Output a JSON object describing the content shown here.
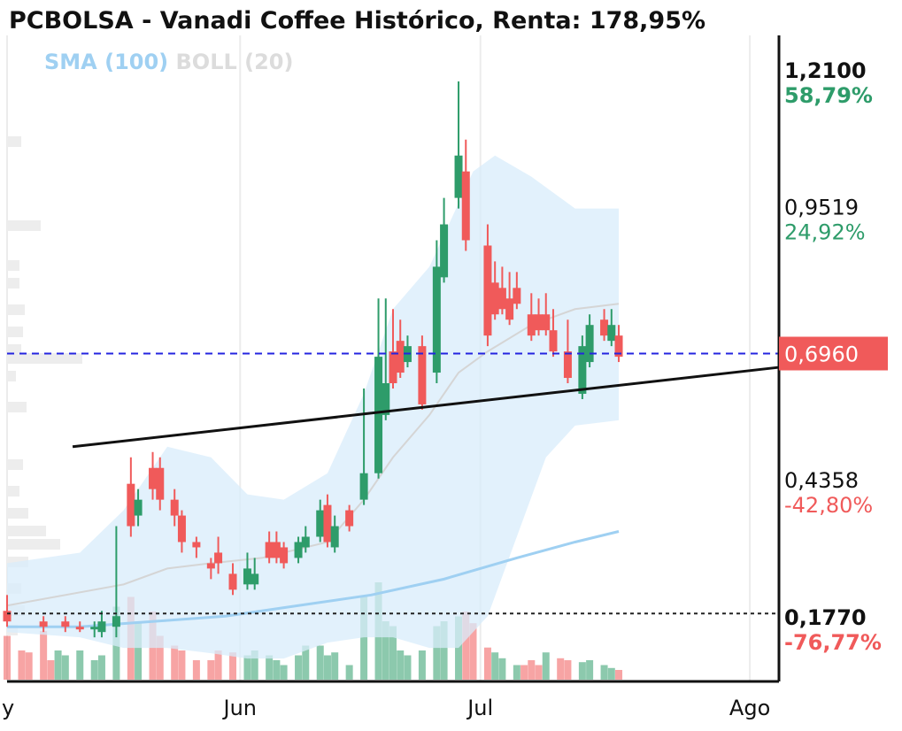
{
  "chart_data": {
    "type": "candlestick",
    "title": "PCBOLSA - Vanadi Coffee Histórico, Renta: 178,95%",
    "indicators": [
      {
        "name": "SMA (100)",
        "color": "#9fd0f2"
      },
      {
        "name": "BOLL (20)",
        "color": "#dcdcdc"
      }
    ],
    "y_labels": [
      {
        "value": "1,2100",
        "pct": "58,79%",
        "v": 1.21,
        "bold": true,
        "pct_color": "#2e9c6a"
      },
      {
        "value": "0,9519",
        "pct": "24,92%",
        "v": 0.9519,
        "bold": false,
        "pct_color": "#2e9c6a"
      },
      {
        "value": "0,4358",
        "pct": "-42,80%",
        "v": 0.4358,
        "bold": false,
        "pct_color": "#f05a5a"
      },
      {
        "value": "0,1770",
        "pct": "-76,77%",
        "v": 0.177,
        "bold": true,
        "pct_color": "#f05a5a"
      }
    ],
    "current_price": {
      "label": "0,6960",
      "v": 0.696
    },
    "x_labels": [
      {
        "label": "y",
        "x": 0
      },
      {
        "label": "Jun",
        "x": 32
      },
      {
        "label": "Jul",
        "x": 65
      },
      {
        "label": "Ago",
        "x": 102
      }
    ],
    "candles": [
      [
        0,
        0.21,
        0.24,
        0.19,
        0.18,
        "#f05a5a"
      ],
      [
        5,
        0.19,
        0.2,
        0.18,
        0.17,
        "#f05a5a"
      ],
      [
        8,
        0.19,
        0.2,
        0.18,
        0.17,
        "#f05a5a"
      ],
      [
        10,
        0.18,
        0.19,
        0.18,
        0.17,
        "#f05a5a"
      ],
      [
        12,
        0.18,
        0.19,
        0.18,
        0.16,
        "#2e9c6a"
      ],
      [
        13,
        0.19,
        0.21,
        0.17,
        0.16,
        "#2e9c6a"
      ],
      [
        15,
        0.2,
        0.37,
        0.18,
        0.16,
        "#2e9c6a"
      ],
      [
        17,
        0.45,
        0.5,
        0.37,
        0.35,
        "#f05a5a"
      ],
      [
        18,
        0.42,
        0.44,
        0.39,
        0.37,
        "#2e9c6a"
      ],
      [
        20,
        0.48,
        0.51,
        0.44,
        0.42,
        "#f05a5a"
      ],
      [
        21,
        0.48,
        0.5,
        0.42,
        0.4,
        "#f05a5a"
      ],
      [
        23,
        0.42,
        0.44,
        0.39,
        0.37,
        "#f05a5a"
      ],
      [
        24,
        0.39,
        0.4,
        0.34,
        0.32,
        "#f05a5a"
      ],
      [
        26,
        0.34,
        0.35,
        0.33,
        0.31,
        "#f05a5a"
      ],
      [
        28,
        0.3,
        0.31,
        0.29,
        0.27,
        "#f05a5a"
      ],
      [
        29,
        0.32,
        0.35,
        0.3,
        0.28,
        "#f05a5a"
      ],
      [
        31,
        0.28,
        0.3,
        0.25,
        0.24,
        "#f05a5a"
      ],
      [
        33,
        0.29,
        0.32,
        0.26,
        0.25,
        "#2e9c6a"
      ],
      [
        34,
        0.28,
        0.31,
        0.26,
        0.25,
        "#2e9c6a"
      ],
      [
        36,
        0.34,
        0.36,
        0.31,
        0.3,
        "#f05a5a"
      ],
      [
        37,
        0.34,
        0.36,
        0.31,
        0.3,
        "#f05a5a"
      ],
      [
        38,
        0.33,
        0.34,
        0.3,
        0.29,
        "#f05a5a"
      ],
      [
        40,
        0.34,
        0.35,
        0.31,
        0.3,
        "#2e9c6a"
      ],
      [
        41,
        0.35,
        0.37,
        0.33,
        0.32,
        "#2e9c6a"
      ],
      [
        43,
        0.4,
        0.42,
        0.35,
        0.34,
        "#2e9c6a"
      ],
      [
        44,
        0.41,
        0.43,
        0.34,
        0.33,
        "#f05a5a"
      ],
      [
        45,
        0.37,
        0.39,
        0.33,
        0.32,
        "#2e9c6a"
      ],
      [
        47,
        0.4,
        0.41,
        0.37,
        0.36,
        "#f05a5a"
      ],
      [
        49,
        0.47,
        0.63,
        0.42,
        0.41,
        "#2e9c6a"
      ],
      [
        51,
        0.69,
        0.8,
        0.47,
        0.46,
        "#2e9c6a"
      ],
      [
        52,
        0.64,
        0.8,
        0.58,
        0.57,
        "#2e9c6a"
      ],
      [
        53,
        0.7,
        0.78,
        0.64,
        0.63,
        "#f05a5a"
      ],
      [
        54,
        0.72,
        0.76,
        0.66,
        0.65,
        "#f05a5a"
      ],
      [
        55,
        0.71,
        0.73,
        0.68,
        0.67,
        "#2e9c6a"
      ],
      [
        57,
        0.71,
        0.73,
        0.6,
        0.59,
        "#f05a5a"
      ],
      [
        59,
        0.86,
        0.91,
        0.66,
        0.64,
        "#2e9c6a"
      ],
      [
        60,
        0.94,
        0.99,
        0.84,
        0.83,
        "#2e9c6a"
      ],
      [
        62,
        1.07,
        1.21,
        0.99,
        0.97,
        "#2e9c6a"
      ],
      [
        63,
        1.04,
        1.1,
        0.91,
        0.89,
        "#f05a5a"
      ],
      [
        66,
        0.9,
        0.94,
        0.73,
        0.71,
        "#f05a5a"
      ],
      [
        67,
        0.83,
        0.87,
        0.77,
        0.76,
        "#f05a5a"
      ],
      [
        68,
        0.82,
        0.86,
        0.78,
        0.77,
        "#f05a5a"
      ],
      [
        69,
        0.8,
        0.85,
        0.76,
        0.75,
        "#f05a5a"
      ],
      [
        70,
        0.82,
        0.85,
        0.79,
        0.78,
        "#f05a5a"
      ],
      [
        72,
        0.77,
        0.81,
        0.73,
        0.72,
        "#f05a5a"
      ],
      [
        73,
        0.77,
        0.8,
        0.74,
        0.73,
        "#f05a5a"
      ],
      [
        74,
        0.77,
        0.81,
        0.74,
        0.73,
        "#f05a5a"
      ],
      [
        75,
        0.74,
        0.78,
        0.7,
        0.69,
        "#f05a5a"
      ],
      [
        77,
        0.7,
        0.76,
        0.65,
        0.64,
        "#f05a5a"
      ],
      [
        79,
        0.71,
        0.73,
        0.62,
        0.61,
        "#2e9c6a"
      ],
      [
        80,
        0.75,
        0.77,
        0.68,
        0.67,
        "#2e9c6a"
      ],
      [
        82,
        0.76,
        0.78,
        0.73,
        0.72,
        "#f05a5a"
      ],
      [
        83,
        0.75,
        0.78,
        0.72,
        0.71,
        "#2e9c6a"
      ],
      [
        84,
        0.73,
        0.75,
        0.69,
        0.68,
        "#f05a5a"
      ]
    ],
    "volume_note": "volume bars at bottom, proportional heights",
    "volumes": [
      [
        0,
        0.45,
        "#f05a5a"
      ],
      [
        2,
        0.3,
        "#f05a5a"
      ],
      [
        3,
        0.28,
        "#f05a5a"
      ],
      [
        5,
        0.5,
        "#f05a5a"
      ],
      [
        6,
        0.2,
        "#f05a5a"
      ],
      [
        7,
        0.3,
        "#2e9c6a"
      ],
      [
        8,
        0.25,
        "#2e9c6a"
      ],
      [
        10,
        0.3,
        "#2e9c6a"
      ],
      [
        12,
        0.2,
        "#2e9c6a"
      ],
      [
        13,
        0.25,
        "#2e9c6a"
      ],
      [
        15,
        0.75,
        "#2e9c6a"
      ],
      [
        17,
        0.85,
        "#f05a5a"
      ],
      [
        18,
        0.6,
        "#2e9c6a"
      ],
      [
        20,
        0.7,
        "#f05a5a"
      ],
      [
        21,
        0.45,
        "#f05a5a"
      ],
      [
        23,
        0.35,
        "#f05a5a"
      ],
      [
        24,
        0.3,
        "#f05a5a"
      ],
      [
        26,
        0.2,
        "#f05a5a"
      ],
      [
        28,
        0.2,
        "#f05a5a"
      ],
      [
        29,
        0.3,
        "#f05a5a"
      ],
      [
        31,
        0.28,
        "#f05a5a"
      ],
      [
        33,
        0.25,
        "#2e9c6a"
      ],
      [
        34,
        0.3,
        "#2e9c6a"
      ],
      [
        36,
        0.25,
        "#2e9c6a"
      ],
      [
        37,
        0.2,
        "#2e9c6a"
      ],
      [
        38,
        0.15,
        "#2e9c6a"
      ],
      [
        40,
        0.25,
        "#2e9c6a"
      ],
      [
        41,
        0.35,
        "#2e9c6a"
      ],
      [
        43,
        0.35,
        "#2e9c6a"
      ],
      [
        44,
        0.25,
        "#2e9c6a"
      ],
      [
        45,
        0.28,
        "#2e9c6a"
      ],
      [
        47,
        0.15,
        "#2e9c6a"
      ],
      [
        49,
        0.85,
        "#2e9c6a"
      ],
      [
        51,
        1.0,
        "#2e9c6a"
      ],
      [
        52,
        0.6,
        "#2e9c6a"
      ],
      [
        53,
        0.55,
        "#2e9c6a"
      ],
      [
        54,
        0.3,
        "#2e9c6a"
      ],
      [
        55,
        0.25,
        "#2e9c6a"
      ],
      [
        57,
        0.3,
        "#2e9c6a"
      ],
      [
        59,
        0.55,
        "#2e9c6a"
      ],
      [
        60,
        0.6,
        "#2e9c6a"
      ],
      [
        62,
        0.65,
        "#2e9c6a"
      ],
      [
        63,
        0.7,
        "#f05a5a"
      ],
      [
        64,
        0.58,
        "#f05a5a"
      ],
      [
        66,
        0.33,
        "#f05a5a"
      ],
      [
        67,
        0.28,
        "#2e9c6a"
      ],
      [
        68,
        0.22,
        "#2e9c6a"
      ],
      [
        70,
        0.15,
        "#2e9c6a"
      ],
      [
        71,
        0.15,
        "#f05a5a"
      ],
      [
        72,
        0.2,
        "#f05a5a"
      ],
      [
        73,
        0.15,
        "#f05a5a"
      ],
      [
        74,
        0.28,
        "#2e9c6a"
      ],
      [
        76,
        0.22,
        "#f05a5a"
      ],
      [
        77,
        0.2,
        "#f05a5a"
      ],
      [
        79,
        0.18,
        "#2e9c6a"
      ],
      [
        80,
        0.2,
        "#2e9c6a"
      ],
      [
        82,
        0.15,
        "#2e9c6a"
      ],
      [
        83,
        0.12,
        "#2e9c6a"
      ],
      [
        84,
        0.1,
        "#f05a5a"
      ]
    ],
    "bollinger_band": {
      "upper": [
        [
          0,
          0.3
        ],
        [
          10,
          0.32
        ],
        [
          16,
          0.4
        ],
        [
          22,
          0.52
        ],
        [
          28,
          0.5
        ],
        [
          33,
          0.43
        ],
        [
          38,
          0.42
        ],
        [
          44,
          0.47
        ],
        [
          49,
          0.62
        ],
        [
          53,
          0.78
        ],
        [
          58,
          0.86
        ],
        [
          62,
          0.98
        ],
        [
          64,
          1.04
        ],
        [
          67,
          1.07
        ],
        [
          72,
          1.03
        ],
        [
          76,
          0.99
        ],
        [
          78,
          0.97
        ],
        [
          84,
          0.97
        ]
      ],
      "lower": [
        [
          0,
          0.17
        ],
        [
          10,
          0.16
        ],
        [
          16,
          0.14
        ],
        [
          22,
          0.14
        ],
        [
          28,
          0.13
        ],
        [
          33,
          0.12
        ],
        [
          38,
          0.12
        ],
        [
          44,
          0.15
        ],
        [
          49,
          0.16
        ],
        [
          53,
          0.16
        ],
        [
          58,
          0.14
        ],
        [
          62,
          0.14
        ],
        [
          66,
          0.2
        ],
        [
          70,
          0.35
        ],
        [
          74,
          0.5
        ],
        [
          78,
          0.56
        ],
        [
          84,
          0.57
        ]
      ],
      "middle": [
        [
          0,
          0.22
        ],
        [
          16,
          0.26
        ],
        [
          22,
          0.29
        ],
        [
          28,
          0.3
        ],
        [
          35,
          0.31
        ],
        [
          44,
          0.34
        ],
        [
          49,
          0.42
        ],
        [
          53,
          0.5
        ],
        [
          58,
          0.58
        ],
        [
          62,
          0.66
        ],
        [
          66,
          0.7
        ],
        [
          72,
          0.75
        ],
        [
          78,
          0.78
        ],
        [
          84,
          0.79
        ]
      ]
    },
    "sma_100": [
      [
        0,
        0.18
      ],
      [
        10,
        0.18
      ],
      [
        20,
        0.19
      ],
      [
        30,
        0.2
      ],
      [
        40,
        0.22
      ],
      [
        50,
        0.24
      ],
      [
        60,
        0.27
      ],
      [
        70,
        0.31
      ],
      [
        78,
        0.34
      ],
      [
        84,
        0.36
      ]
    ],
    "trendline": [
      [
        9,
        0.52
      ],
      [
        106,
        0.67
      ]
    ],
    "dotted_level": 0.205,
    "x_min": 0,
    "x_max": 106,
    "y_min": 0.12,
    "y_max": 1.28
  }
}
